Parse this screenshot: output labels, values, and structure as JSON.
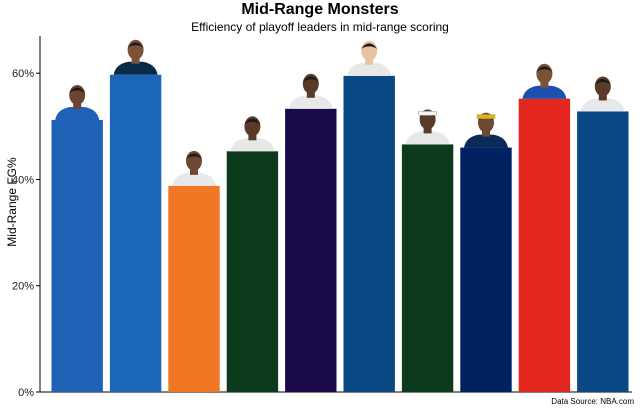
{
  "chart_data": {
    "type": "bar",
    "title": "Mid-Range Monsters",
    "subtitle": "Efficiency of playoff leaders in mid-range scoring",
    "xlabel": "",
    "ylabel": "Mid-Range FG%",
    "source": "Data Source: NBA.com",
    "yticks": [
      "0%",
      "20%",
      "40%",
      "60%"
    ],
    "ylim": [
      0,
      0.67
    ],
    "grid": false,
    "legend": "none",
    "values": [
      0.512,
      0.597,
      0.388,
      0.453,
      0.533,
      0.595,
      0.466,
      0.46,
      0.552,
      0.528
    ],
    "colors": [
      "#1D62B5",
      "#1B66B8",
      "#F07724",
      "#0B3A1C",
      "#1A0A4A",
      "#0A4883",
      "#0B3A1C",
      "#002260",
      "#E3261E",
      "#0A4883"
    ],
    "jerseys": [
      "#1D62B5",
      "#0A2A4A",
      "#E8E8E8",
      "#E8E8E8",
      "#E8E8E8",
      "#E8E8E8",
      "#E8E8E8",
      "#0A2A5A",
      "#1D4FAE",
      "#E8E8E8"
    ],
    "skins": [
      "#6B4530",
      "#7A5236",
      "#6E4832",
      "#5A3A28",
      "#5A3A28",
      "#E8C3A3",
      "#5A3A28",
      "#6E4832",
      "#7A5236",
      "#5A3A28"
    ],
    "headbands": [
      false,
      false,
      false,
      false,
      false,
      false,
      true,
      true,
      false,
      false
    ]
  }
}
